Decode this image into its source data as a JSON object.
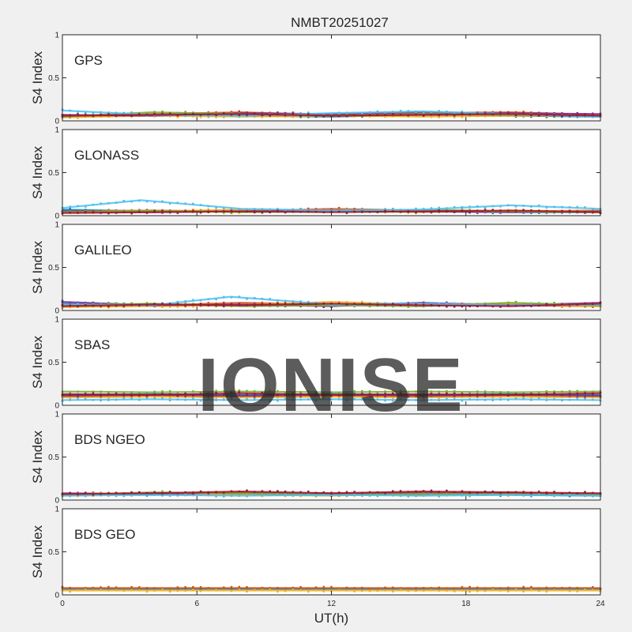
{
  "chart_data": {
    "type": "scatter",
    "title": "NMBT20251027",
    "xlabel": "UT(h)",
    "ylabel": "S4 Index",
    "xlim": [
      0,
      24
    ],
    "ylim": [
      0,
      1
    ],
    "x_ticks": [
      0,
      6,
      12,
      18,
      24
    ],
    "y_ticks": [
      0,
      0.5,
      1
    ],
    "watermark": "IONISE",
    "colors": [
      "#0072BD",
      "#D95319",
      "#EDB120",
      "#7E2F8E",
      "#77AC30",
      "#4DBEEE",
      "#A2142F"
    ],
    "panels": [
      {
        "label": "GPS",
        "series": [
          {
            "x": [
              0,
              4,
              8,
              12,
              16,
              20,
              24
            ],
            "y": [
              0.05,
              0.07,
              0.06,
              0.05,
              0.07,
              0.06,
              0.05
            ]
          },
          {
            "x": [
              0,
              4,
              8,
              12,
              16,
              20,
              24
            ],
            "y": [
              0.06,
              0.08,
              0.1,
              0.07,
              0.09,
              0.1,
              0.07
            ]
          },
          {
            "x": [
              0,
              4,
              8,
              12,
              16,
              20,
              24
            ],
            "y": [
              0.04,
              0.06,
              0.05,
              0.06,
              0.05,
              0.06,
              0.06
            ]
          },
          {
            "x": [
              0,
              4,
              8,
              12,
              16,
              20,
              24
            ],
            "y": [
              0.07,
              0.06,
              0.09,
              0.08,
              0.1,
              0.09,
              0.08
            ]
          },
          {
            "x": [
              0,
              4,
              8,
              12,
              16,
              20,
              24
            ],
            "y": [
              0.05,
              0.1,
              0.08,
              0.06,
              0.08,
              0.07,
              0.06
            ]
          },
          {
            "x": [
              0,
              4,
              8,
              12,
              16,
              20,
              24
            ],
            "y": [
              0.12,
              0.07,
              0.06,
              0.09,
              0.11,
              0.08,
              0.05
            ]
          },
          {
            "x": [
              0,
              4,
              8,
              12,
              16,
              20,
              24
            ],
            "y": [
              0.06,
              0.07,
              0.08,
              0.06,
              0.07,
              0.08,
              0.06
            ]
          }
        ]
      },
      {
        "label": "GLONASS",
        "series": [
          {
            "x": [
              0,
              4,
              8,
              12,
              16,
              20,
              24
            ],
            "y": [
              0.07,
              0.05,
              0.06,
              0.05,
              0.05,
              0.04,
              0.04
            ]
          },
          {
            "x": [
              0,
              4,
              8,
              12,
              16,
              20,
              24
            ],
            "y": [
              0.05,
              0.06,
              0.05,
              0.08,
              0.06,
              0.05,
              0.06
            ]
          },
          {
            "x": [
              0,
              4,
              8,
              12,
              16,
              20,
              24
            ],
            "y": [
              0.04,
              0.05,
              0.07,
              0.05,
              0.04,
              0.06,
              0.05
            ]
          },
          {
            "x": [
              0,
              4,
              8,
              12,
              16,
              20,
              24
            ],
            "y": [
              0.05,
              0.04,
              0.05,
              0.06,
              0.05,
              0.04,
              0.05
            ]
          },
          {
            "x": [
              0,
              4,
              8,
              12,
              16,
              20,
              24
            ],
            "y": [
              0.04,
              0.06,
              0.04,
              0.05,
              0.07,
              0.05,
              0.04
            ]
          },
          {
            "x": [
              0,
              3.5,
              8,
              12,
              16,
              20,
              24
            ],
            "y": [
              0.09,
              0.18,
              0.08,
              0.06,
              0.07,
              0.12,
              0.08
            ]
          },
          {
            "x": [
              0,
              4,
              8,
              12,
              16,
              20,
              24
            ],
            "y": [
              0.03,
              0.04,
              0.05,
              0.04,
              0.05,
              0.06,
              0.04
            ]
          }
        ]
      },
      {
        "label": "GALILEO",
        "series": [
          {
            "x": [
              0,
              4,
              8,
              12,
              16,
              20,
              24
            ],
            "y": [
              0.08,
              0.07,
              0.06,
              0.07,
              0.06,
              0.07,
              0.06
            ]
          },
          {
            "x": [
              0,
              4,
              8,
              12,
              16,
              20,
              24
            ],
            "y": [
              0.05,
              0.06,
              0.09,
              0.07,
              0.08,
              0.06,
              0.05
            ]
          },
          {
            "x": [
              0,
              4,
              8,
              12,
              16,
              20,
              24
            ],
            "y": [
              0.04,
              0.05,
              0.06,
              0.1,
              0.07,
              0.08,
              0.05
            ]
          },
          {
            "x": [
              0,
              4,
              8,
              12,
              16,
              20,
              24
            ],
            "y": [
              0.1,
              0.06,
              0.07,
              0.05,
              0.09,
              0.06,
              0.09
            ]
          },
          {
            "x": [
              0,
              4,
              8,
              12,
              16,
              20,
              24
            ],
            "y": [
              0.06,
              0.08,
              0.05,
              0.06,
              0.05,
              0.09,
              0.06
            ]
          },
          {
            "x": [
              0,
              4,
              7.5,
              12,
              16,
              20,
              24
            ],
            "y": [
              0.07,
              0.06,
              0.16,
              0.07,
              0.08,
              0.06,
              0.07
            ]
          },
          {
            "x": [
              0,
              4,
              8,
              12,
              16,
              20,
              24
            ],
            "y": [
              0.05,
              0.07,
              0.06,
              0.08,
              0.06,
              0.05,
              0.08
            ]
          }
        ]
      },
      {
        "label": "SBAS",
        "series": [
          {
            "x": [
              0,
              4,
              8,
              12,
              16,
              20,
              24
            ],
            "y": [
              0.12,
              0.13,
              0.12,
              0.13,
              0.12,
              0.13,
              0.12
            ]
          },
          {
            "x": [
              0,
              4,
              8,
              12,
              16,
              20,
              24
            ],
            "y": [
              0.1,
              0.11,
              0.1,
              0.11,
              0.1,
              0.11,
              0.1
            ]
          },
          {
            "x": [
              0,
              4,
              8,
              12,
              16,
              20,
              24
            ],
            "y": [
              0.09,
              0.1,
              0.09,
              0.1,
              0.09,
              0.1,
              0.09
            ]
          },
          {
            "x": [
              0,
              4,
              8,
              12,
              16,
              20,
              24
            ],
            "y": [
              0.11,
              0.12,
              0.11,
              0.12,
              0.11,
              0.12,
              0.11
            ]
          },
          {
            "x": [
              0,
              4,
              8,
              12,
              16,
              20,
              24
            ],
            "y": [
              0.16,
              0.15,
              0.16,
              0.15,
              0.16,
              0.15,
              0.16
            ]
          },
          {
            "x": [
              0,
              4,
              8,
              12,
              16,
              20,
              24
            ],
            "y": [
              0.06,
              0.07,
              0.06,
              0.07,
              0.06,
              0.07,
              0.06
            ]
          },
          {
            "x": [
              0,
              4,
              8,
              12,
              16,
              20,
              24
            ],
            "y": [
              0.13,
              0.12,
              0.14,
              0.12,
              0.13,
              0.12,
              0.14
            ]
          }
        ]
      },
      {
        "label": "BDS NGEO",
        "series": [
          {
            "x": [
              0,
              4,
              8,
              12,
              16,
              20,
              24
            ],
            "y": [
              0.07,
              0.06,
              0.08,
              0.06,
              0.07,
              0.06,
              0.05
            ]
          },
          {
            "x": [
              0,
              4,
              8,
              12,
              16,
              20,
              24
            ],
            "y": [
              0.06,
              0.08,
              0.07,
              0.08,
              0.06,
              0.09,
              0.06
            ]
          },
          {
            "x": [
              0,
              4,
              8,
              12,
              16,
              20,
              24
            ],
            "y": [
              0.05,
              0.07,
              0.06,
              0.05,
              0.08,
              0.06,
              0.07
            ]
          },
          {
            "x": [
              0,
              4,
              8,
              12,
              16,
              20,
              24
            ],
            "y": [
              0.08,
              0.07,
              0.09,
              0.07,
              0.09,
              0.08,
              0.07
            ]
          },
          {
            "x": [
              0,
              4,
              8,
              12,
              16,
              20,
              24
            ],
            "y": [
              0.06,
              0.09,
              0.08,
              0.06,
              0.07,
              0.07,
              0.06
            ]
          },
          {
            "x": [
              0,
              4,
              8,
              12,
              16,
              20,
              24
            ],
            "y": [
              0.05,
              0.06,
              0.05,
              0.06,
              0.05,
              0.06,
              0.05
            ]
          },
          {
            "x": [
              0,
              4,
              8,
              12,
              16,
              20,
              24
            ],
            "y": [
              0.07,
              0.08,
              0.1,
              0.08,
              0.1,
              0.09,
              0.08
            ]
          }
        ]
      },
      {
        "label": "BDS GEO",
        "series": [
          {
            "x": [
              0,
              4,
              8,
              12,
              16,
              20,
              24
            ],
            "y": [
              0.07,
              0.07,
              0.07,
              0.07,
              0.07,
              0.07,
              0.07
            ]
          },
          {
            "x": [
              0,
              4,
              8,
              12,
              16,
              20,
              24
            ],
            "y": [
              0.08,
              0.08,
              0.08,
              0.08,
              0.08,
              0.08,
              0.08
            ]
          },
          {
            "x": [
              0,
              4,
              8,
              12,
              16,
              20,
              24
            ],
            "y": [
              0.05,
              0.05,
              0.05,
              0.05,
              0.05,
              0.05,
              0.05
            ]
          }
        ]
      }
    ]
  }
}
